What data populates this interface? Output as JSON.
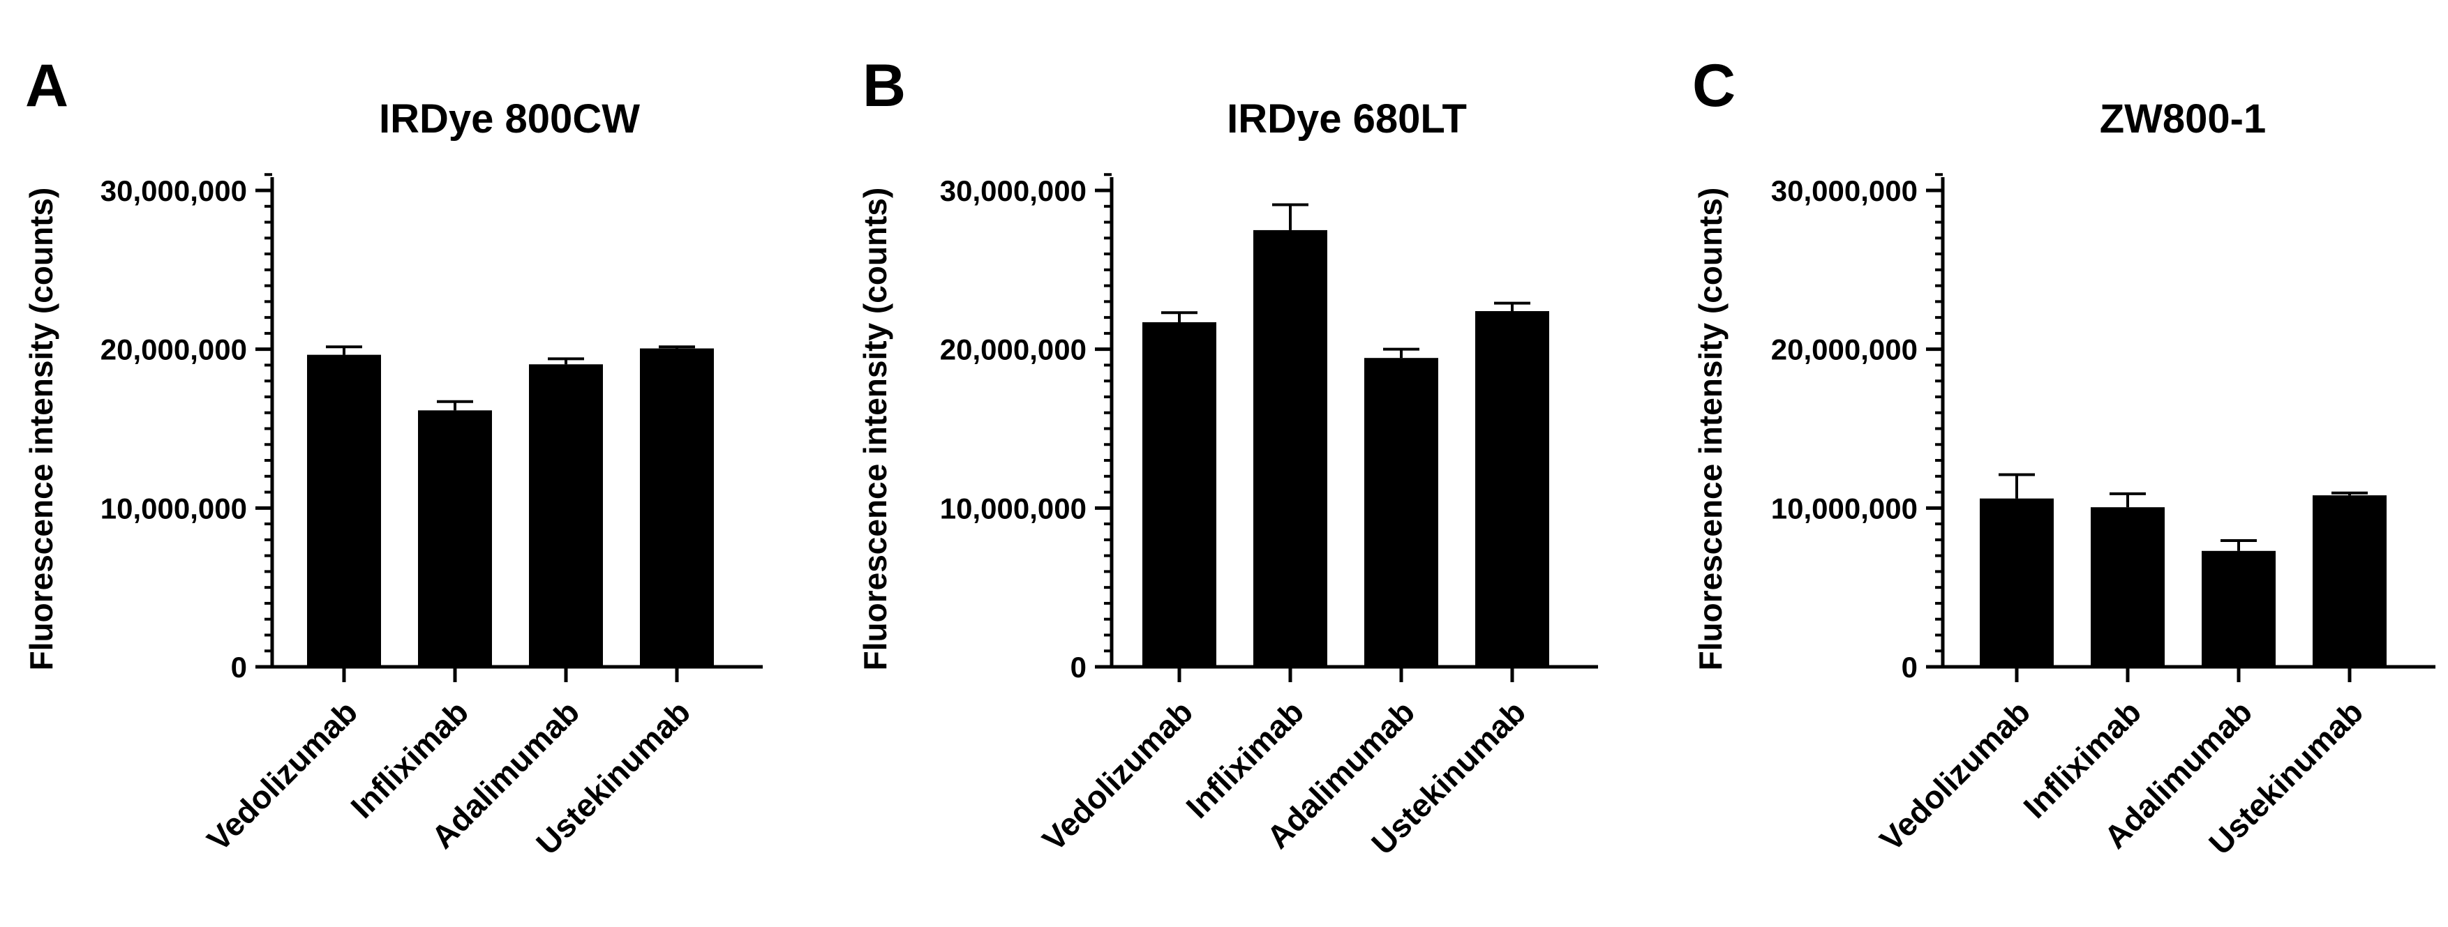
{
  "chart_data": [
    {
      "type": "bar",
      "panel_letter": "A",
      "title": "IRDye 800CW",
      "ylabel": "Fluorescence intensity  (counts)",
      "xlabel": "",
      "categories": [
        "Vedolizumab",
        "Infliximab",
        "Adalimumab",
        "Ustekinumab"
      ],
      "values": [
        19650000,
        16150000,
        19050000,
        20050000
      ],
      "errors": [
        500000,
        550000,
        350000,
        100000
      ],
      "ylim": [
        0,
        31000000
      ],
      "yticks": [
        0,
        10000000,
        20000000,
        30000000
      ],
      "ytick_labels": [
        "0",
        "10,000,000",
        "20,000,000",
        "30,000,000"
      ],
      "minor_tick_step": 1000000,
      "bar_color": "#000000",
      "grid": false,
      "legend": "none"
    },
    {
      "type": "bar",
      "panel_letter": "B",
      "title": "IRDye 680LT",
      "ylabel": "Fluorescence intensity  (counts)",
      "xlabel": "",
      "categories": [
        "Vedolizumab",
        "Infliximab",
        "Adalimumab",
        "Ustekinumab"
      ],
      "values": [
        21700000,
        27500000,
        19450000,
        22400000
      ],
      "errors": [
        600000,
        1600000,
        550000,
        500000
      ],
      "ylim": [
        0,
        31000000
      ],
      "yticks": [
        0,
        10000000,
        20000000,
        30000000
      ],
      "ytick_labels": [
        "0",
        "10,000,000",
        "20,000,000",
        "30,000,000"
      ],
      "minor_tick_step": 1000000,
      "bar_color": "#000000",
      "grid": false,
      "legend": "none"
    },
    {
      "type": "bar",
      "panel_letter": "C",
      "title": "ZW800-1",
      "ylabel": "Fluorescence intensity  (counts)",
      "xlabel": "",
      "categories": [
        "Vedolizumab",
        "Infliximab",
        "Adalimumab",
        "Ustekinumab"
      ],
      "values": [
        10600000,
        10050000,
        7300000,
        10800000
      ],
      "errors": [
        1500000,
        850000,
        650000,
        150000
      ],
      "ylim": [
        0,
        31000000
      ],
      "yticks": [
        0,
        10000000,
        20000000,
        30000000
      ],
      "ytick_labels": [
        "0",
        "10,000,000",
        "20,000,000",
        "30,000,000"
      ],
      "minor_tick_step": 1000000,
      "bar_color": "#000000",
      "grid": false,
      "legend": "none"
    }
  ]
}
